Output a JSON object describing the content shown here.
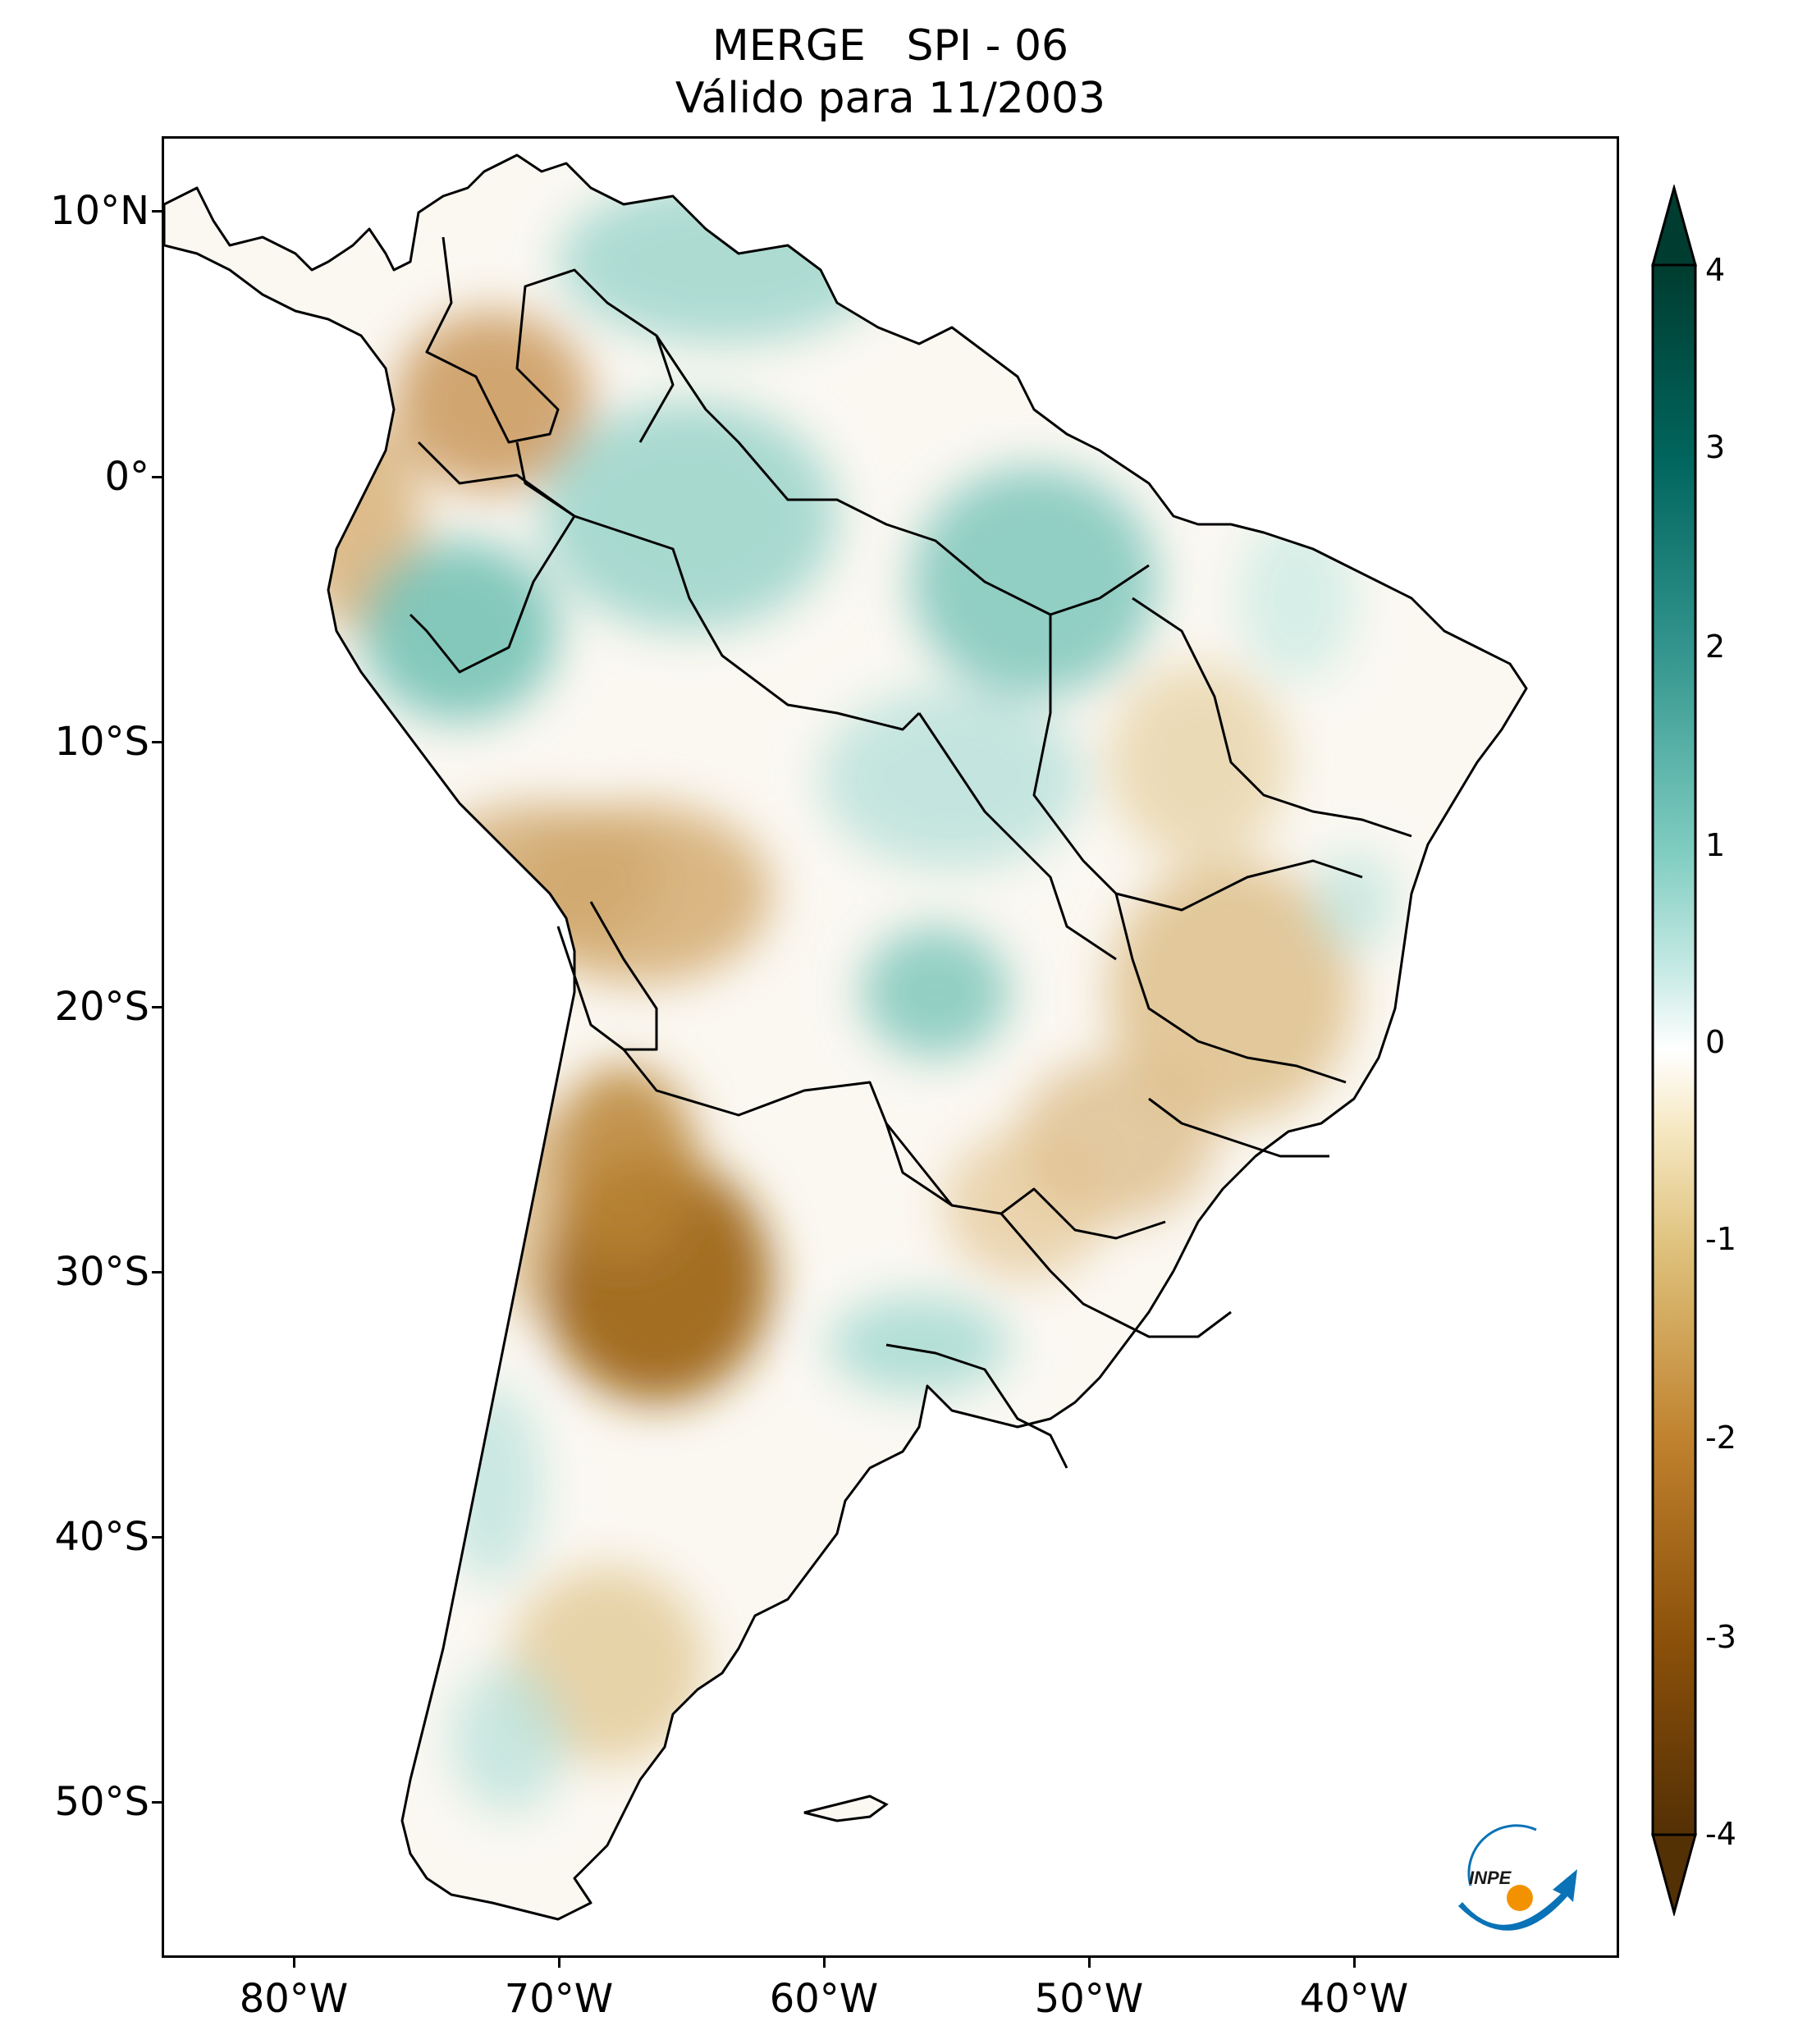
{
  "title": {
    "line1": "MERGE   SPI - 06",
    "line2": "Válido para 11/2003"
  },
  "axes": {
    "lat_labels": [
      "10°N",
      "0°",
      "10°S",
      "20°S",
      "30°S",
      "40°S",
      "50°S"
    ],
    "lon_labels": [
      "80°W",
      "70°W",
      "60°W",
      "50°W",
      "40°W"
    ]
  },
  "colorbar": {
    "ticks": [
      "4",
      "3",
      "2",
      "1",
      "0",
      "-1",
      "-2",
      "-3",
      "-4"
    ],
    "range": [
      -4,
      4
    ],
    "extend": "both",
    "colormap": "BrBG",
    "colors": {
      "dry_extreme": "#543005",
      "dry_strong": "#8c510a",
      "dry_moderate": "#bf812d",
      "dry_mild": "#dfc27d",
      "near_normal": "#f6f2ea",
      "neutral": "#ffffff",
      "wet_mild": "#c7eae5",
      "wet_moderate": "#80cdc1",
      "wet_strong": "#35978f",
      "wet_very_strong": "#01665e",
      "wet_extreme": "#003c30"
    }
  },
  "map": {
    "region": "South America",
    "lon_range": [
      -85,
      -30
    ],
    "lat_range": [
      -56,
      13
    ],
    "boundaries_color": "#000000",
    "ocean_color": "#ffffff"
  },
  "logo": {
    "text": "INPE",
    "colors": {
      "arc": "#0a72b6",
      "dot": "#f39200"
    }
  }
}
